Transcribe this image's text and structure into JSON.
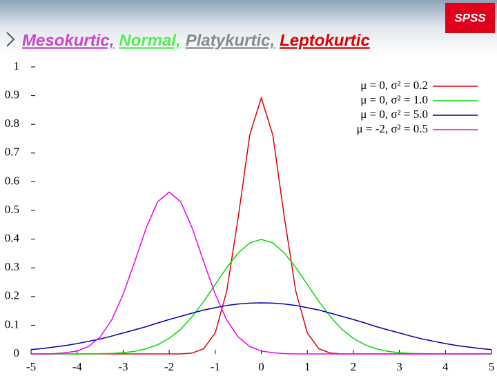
{
  "logo": "SPSS",
  "chart_data": {
    "type": "line",
    "title_parts": [
      {
        "text": "Mesokurtic,",
        "color": "#cc44cc"
      },
      {
        "text": "Normal,",
        "color": "#55ee55"
      },
      {
        "text": "Platykurtic,",
        "color": "#8a8a8a"
      },
      {
        "text": "Leptokurtic",
        "color": "#dd0000"
      }
    ],
    "x": [
      -5,
      -4.75,
      -4.5,
      -4.25,
      -4,
      -3.75,
      -3.5,
      -3.25,
      -3,
      -2.75,
      -2.5,
      -2.25,
      -2,
      -1.75,
      -1.5,
      -1.25,
      -1,
      -0.75,
      -0.5,
      -0.25,
      0,
      0.25,
      0.5,
      0.75,
      1,
      1.25,
      1.5,
      1.75,
      2,
      2.25,
      2.5,
      2.75,
      3,
      3.25,
      3.5,
      3.75,
      4,
      4.25,
      4.5,
      4.75,
      5
    ],
    "series": [
      {
        "name": "μ =  0, σ² = 0.2",
        "color": "#dd0000",
        "values": [
          0,
          0,
          0,
          0,
          0,
          0,
          0,
          0,
          0,
          0,
          0,
          0,
          0,
          0,
          0.003,
          0.018,
          0.073,
          0.219,
          0.477,
          0.763,
          0.892,
          0.763,
          0.477,
          0.219,
          0.073,
          0.018,
          0.003,
          0,
          0,
          0,
          0,
          0,
          0,
          0,
          0,
          0,
          0,
          0,
          0,
          0,
          0
        ]
      },
      {
        "name": "μ =  0, σ² = 1.0",
        "color": "#00dd00",
        "values": [
          0,
          0,
          0,
          0,
          0,
          0,
          0.001,
          0.002,
          0.004,
          0.009,
          0.018,
          0.032,
          0.054,
          0.086,
          0.13,
          0.183,
          0.242,
          0.301,
          0.352,
          0.387,
          0.399,
          0.387,
          0.352,
          0.301,
          0.242,
          0.183,
          0.13,
          0.086,
          0.054,
          0.032,
          0.018,
          0.009,
          0.004,
          0.002,
          0.001,
          0,
          0,
          0,
          0,
          0,
          0
        ]
      },
      {
        "name": "μ =  0, σ² = 5.0",
        "color": "#0000aa",
        "values": [
          0.015,
          0.019,
          0.024,
          0.029,
          0.036,
          0.044,
          0.052,
          0.062,
          0.073,
          0.084,
          0.095,
          0.108,
          0.12,
          0.131,
          0.142,
          0.153,
          0.161,
          0.169,
          0.174,
          0.177,
          0.178,
          0.177,
          0.174,
          0.169,
          0.161,
          0.153,
          0.142,
          0.131,
          0.12,
          0.108,
          0.095,
          0.084,
          0.073,
          0.062,
          0.052,
          0.044,
          0.036,
          0.029,
          0.024,
          0.019,
          0.015
        ]
      },
      {
        "name": "μ = -2, σ² = 0.5",
        "color": "#ee00ee",
        "values": [
          0,
          0,
          0.001,
          0.004,
          0.01,
          0.026,
          0.059,
          0.118,
          0.208,
          0.321,
          0.439,
          0.53,
          0.564,
          0.53,
          0.439,
          0.321,
          0.208,
          0.118,
          0.059,
          0.026,
          0.01,
          0.004,
          0.001,
          0,
          0,
          0,
          0,
          0,
          0,
          0,
          0,
          0,
          0,
          0,
          0,
          0,
          0,
          0,
          0,
          0,
          0
        ]
      }
    ],
    "xlim": [
      -5,
      5
    ],
    "xticks": [
      -5,
      -4,
      -3,
      -2,
      -1,
      0,
      1,
      2,
      3,
      4,
      5
    ],
    "ylim": [
      0,
      1
    ],
    "yticks": [
      0,
      0.1,
      0.2,
      0.3,
      0.4,
      0.5,
      0.6,
      0.7,
      0.8,
      0.9,
      1
    ],
    "legend": "top-right"
  }
}
